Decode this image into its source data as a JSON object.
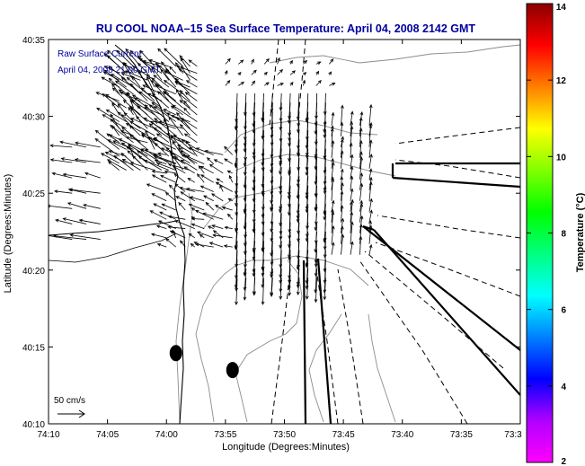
{
  "chart_data": {
    "type": "quiver",
    "title": "RU COOL  NOAA–15  Sea Surface Temperature:  April 04, 2008 2142 GMT",
    "subtitle_line1": "Raw Surface Current",
    "subtitle_line2": "April 04, 2008 21:00 GMT",
    "xlabel": "Longitude (Degrees:Minutes)",
    "ylabel": "Latitude (Degrees:Minutes)",
    "x_range_minutes": [
      -10,
      30
    ],
    "y_range_minutes": [
      10,
      35
    ],
    "x_ticks": [
      {
        "value": -10,
        "label": "74:10"
      },
      {
        "value": -5,
        "label": "74:05"
      },
      {
        "value": 0,
        "label": "74:00"
      },
      {
        "value": 5,
        "label": "73:55"
      },
      {
        "value": 10,
        "label": "73:50"
      },
      {
        "value": 15,
        "label": "73:45"
      },
      {
        "value": 20,
        "label": "73:40"
      },
      {
        "value": 25,
        "label": "73:35"
      },
      {
        "value": 30,
        "label": "73:3"
      }
    ],
    "y_ticks": [
      {
        "value": 10,
        "label": "40:10"
      },
      {
        "value": 15,
        "label": "40:15"
      },
      {
        "value": 20,
        "label": "40:20"
      },
      {
        "value": 25,
        "label": "40:25"
      },
      {
        "value": 30,
        "label": "40:30"
      },
      {
        "value": 35,
        "label": "40:35"
      }
    ],
    "scale_label": "50 cm/s",
    "colorbar": {
      "label": "Temperature (°C)",
      "min": 2,
      "max": 14,
      "ticks": [
        {
          "value": 2,
          "label": "2"
        },
        {
          "value": 4,
          "label": "4"
        },
        {
          "value": 6,
          "label": "6"
        },
        {
          "value": 8,
          "label": "8"
        },
        {
          "value": 10,
          "label": "10"
        },
        {
          "value": 12,
          "label": "12"
        },
        {
          "value": 14,
          "label": "14"
        }
      ],
      "colors": [
        "#ff00ff",
        "#b000ff",
        "#0000ff",
        "#0080ff",
        "#00ffff",
        "#00ff80",
        "#00ff00",
        "#80ff00",
        "#ffff00",
        "#ff8000",
        "#ff0000",
        "#8b0000"
      ]
    },
    "colors": {
      "title": "#0000a0",
      "subtitle": "#0000a0",
      "coast": "#000000",
      "bathy": "#8c8c8c"
    },
    "current_fields": [
      {
        "name": "upper-west",
        "lon": [
          -4,
          3
        ],
        "lat": [
          26.5,
          33.5
        ],
        "step_lon": 0.6,
        "step_lat": 0.45,
        "u": -28,
        "v": 22,
        "jitter": 0.5
      },
      {
        "name": "mid-west",
        "lon": [
          0,
          6
        ],
        "lat": [
          21.5,
          28
        ],
        "step_lon": 0.8,
        "step_lat": 0.6,
        "u": -22,
        "v": 10,
        "jitter": 0.6
      },
      {
        "name": "central-south",
        "lon": [
          6,
          14
        ],
        "lat": [
          19.5,
          32
        ],
        "step_lon": 0.75,
        "step_lat": 0.6,
        "u": -2,
        "v": -42,
        "jitter": 0.3
      },
      {
        "name": "east-north",
        "lon": [
          14,
          18
        ],
        "lat": [
          21,
          30
        ],
        "step_lon": 0.8,
        "step_lat": 0.7,
        "u": 3,
        "v": 30,
        "jitter": 0.4
      },
      {
        "name": "north-upper",
        "lon": [
          5,
          14
        ],
        "lat": [
          32,
          34
        ],
        "step_lon": 1.1,
        "step_lat": 0.7,
        "u": 6,
        "v": 6,
        "jitter": 0.6
      },
      {
        "name": "west-offshore",
        "lon": [
          -8,
          -5
        ],
        "lat": [
          22,
          28
        ],
        "step_lon": 1.2,
        "step_lat": 1.0,
        "u": -40,
        "v": 8,
        "jitter": 0.4
      }
    ],
    "blobs": [
      {
        "lon": 0.8,
        "lat": 14.6
      },
      {
        "lon": 5.6,
        "lat": 13.5
      }
    ]
  }
}
